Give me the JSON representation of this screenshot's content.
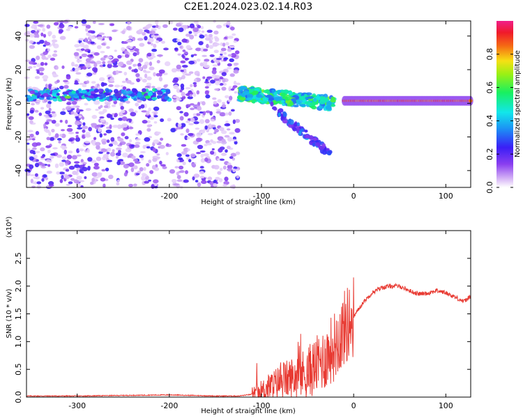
{
  "title": "C2E1.2024.023.02.14.R03",
  "spectrogram": {
    "xlabel": "Height of straight line (km)",
    "ylabel": "Frequency (Hz)",
    "xlim": [
      -355,
      127
    ],
    "ylim": [
      -50,
      49
    ],
    "xticks": [
      "-300",
      "-200",
      "-100",
      "0",
      "100"
    ],
    "xtick_values": [
      -300,
      -200,
      -100,
      0,
      100
    ],
    "yticks": [
      "-40",
      "-20",
      "0",
      "20",
      "40"
    ],
    "ytick_values": [
      -40,
      -20,
      0,
      20,
      40
    ],
    "colorbar": {
      "label": "Normalized spectral amplitude",
      "ticks": [
        "0.0",
        "0.2",
        "0.4",
        "0.6",
        "0.8"
      ],
      "tick_values": [
        0.0,
        0.2,
        0.4,
        0.6,
        0.8
      ],
      "range": [
        0,
        1
      ],
      "colormap": "white-purple-blue-cyan-green-yellow-red-pink"
    },
    "features": {
      "noise_region_km": [
        -355,
        -125
      ],
      "noise_gap_km": [
        -210,
        -195
      ],
      "early_band_freq_hz": 5,
      "descending_branch_km": [
        -125,
        -20
      ],
      "steady_line_freq_hz": 1.5,
      "steady_line_km": [
        -10,
        127
      ]
    }
  },
  "chart_data": {
    "type": "line",
    "title": "",
    "xlabel": "Height of straight line (km)",
    "ylabel": "SNR (10 * v/v)",
    "y_multiplier": "(x10⁴)",
    "xlim": [
      -355,
      127
    ],
    "ylim": [
      0,
      3.0
    ],
    "xticks": [
      "-300",
      "-200",
      "-100",
      "0",
      "100"
    ],
    "xtick_values": [
      -300,
      -200,
      -100,
      0,
      100
    ],
    "yticks": [
      "0.0",
      "0.5",
      "1.0",
      "1.5",
      "2.0",
      "2.5"
    ],
    "ytick_values": [
      0.0,
      0.5,
      1.0,
      1.5,
      2.0,
      2.5
    ],
    "color": "#e83a32",
    "series": [
      {
        "x": [
          -355,
          -300,
          -250,
          -200,
          -150,
          -125,
          -110,
          -100,
          -90,
          -80,
          -70,
          -60,
          -50,
          -40,
          -30,
          -20,
          -10,
          0,
          10,
          20,
          30,
          40,
          50,
          60,
          70,
          80,
          90,
          100,
          110,
          120,
          127
        ],
        "values": [
          0.02,
          0.02,
          0.03,
          0.04,
          0.02,
          0.02,
          0.05,
          0.1,
          0.2,
          0.28,
          0.33,
          0.38,
          0.45,
          0.58,
          0.72,
          0.95,
          1.25,
          1.45,
          1.7,
          1.88,
          1.97,
          2.0,
          2.0,
          1.92,
          1.86,
          1.87,
          1.92,
          1.88,
          1.8,
          1.72,
          1.82
        ]
      }
    ]
  }
}
